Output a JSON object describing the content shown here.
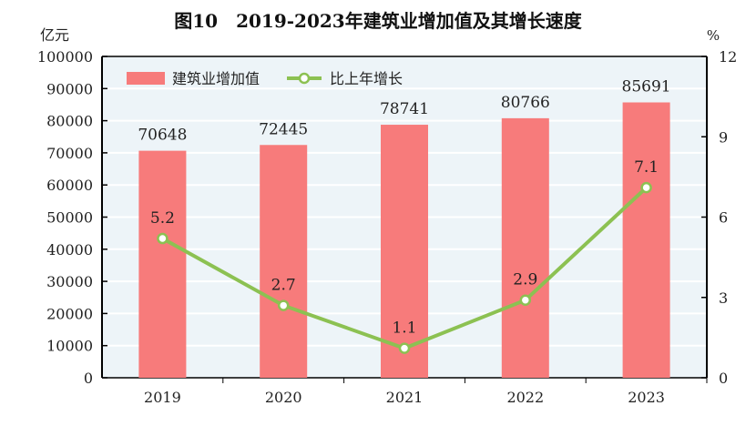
{
  "chart_data": {
    "type": "bar+line",
    "title": "图10　2019-2023年建筑业增加值及其增长速度",
    "y_left_label": "亿元",
    "y_right_label": "%",
    "categories": [
      "2019",
      "2020",
      "2021",
      "2022",
      "2023"
    ],
    "y_left_range": [
      0,
      100000
    ],
    "y_left_ticks": [
      0,
      10000,
      20000,
      30000,
      40000,
      50000,
      60000,
      70000,
      80000,
      90000,
      100000
    ],
    "y_right_range": [
      0,
      12
    ],
    "y_right_ticks": [
      0,
      3,
      6,
      9,
      12
    ],
    "grid": true,
    "legend_position": "top-left",
    "series": [
      {
        "name": "建筑业增加值",
        "type": "bar",
        "axis": "left",
        "color": "#f77b7b",
        "values": [
          70648,
          72445,
          78741,
          80766,
          85691
        ],
        "labels": [
          "70648",
          "72445",
          "78741",
          "80766",
          "85691"
        ]
      },
      {
        "name": "比上年增长",
        "type": "line",
        "axis": "right",
        "color": "#8cc152",
        "values": [
          5.2,
          2.7,
          1.1,
          2.9,
          7.1
        ],
        "labels": [
          "5.2",
          "2.7",
          "1.1",
          "2.9",
          "7.1"
        ]
      }
    ]
  }
}
